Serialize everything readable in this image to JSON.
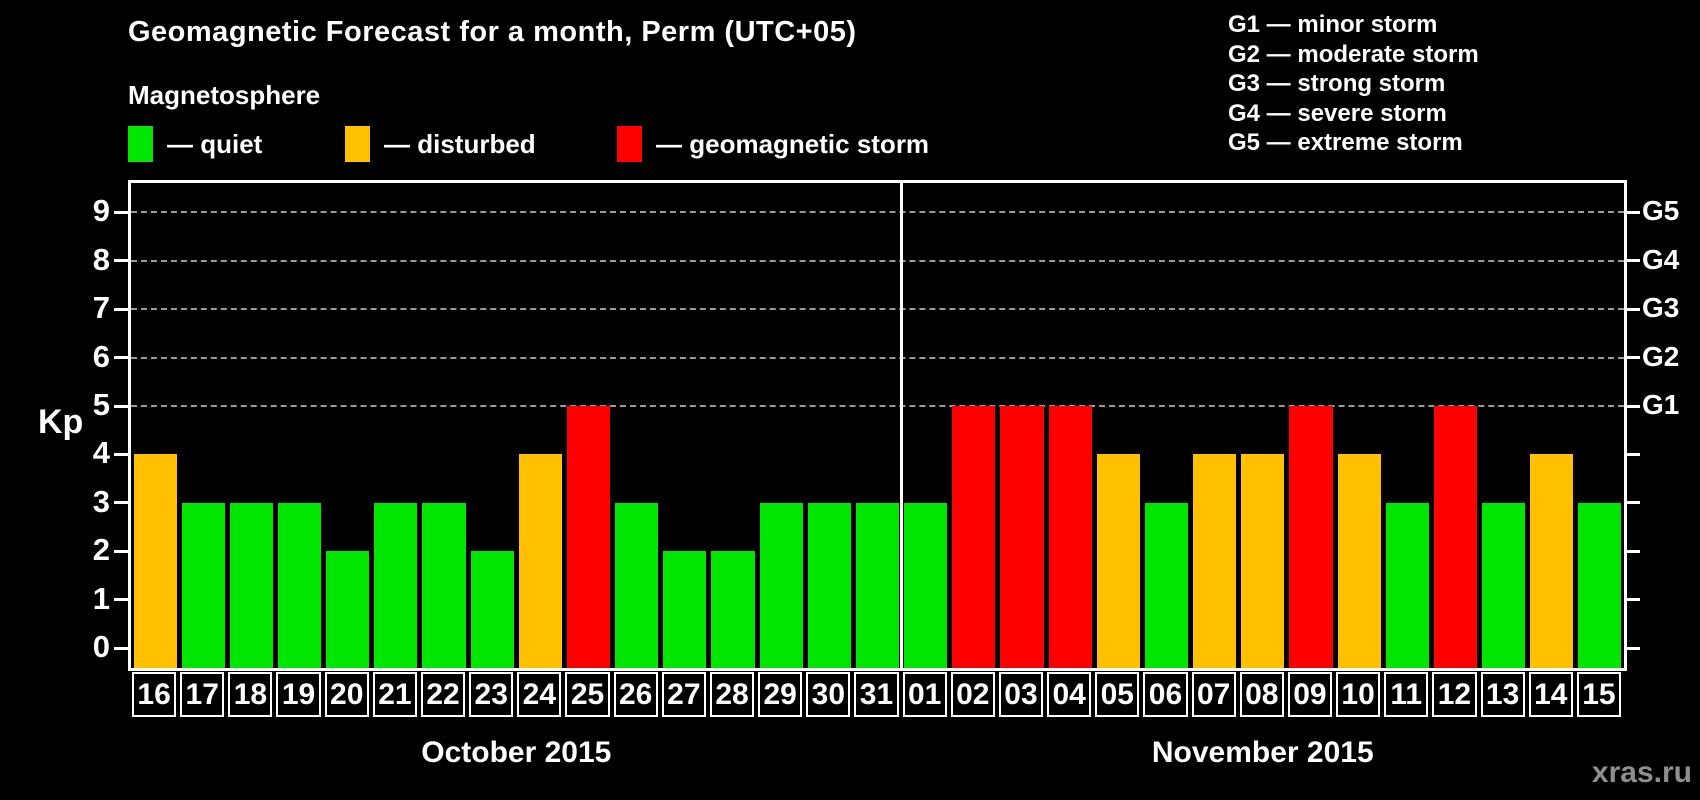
{
  "title": "Geomagnetic Forecast for a month, Perm (UTC+05)",
  "subtitle": "Magnetosphere",
  "legend": {
    "items": [
      {
        "status": "quiet",
        "label": "— quiet"
      },
      {
        "status": "disturbed",
        "label": "— disturbed"
      },
      {
        "status": "storm",
        "label": "— geomagnetic storm"
      }
    ]
  },
  "g_legend": {
    "items": [
      "G1 — minor storm",
      "G2 — moderate storm",
      "G3 — strong storm",
      "G4 — severe storm",
      "G5 — extreme storm"
    ]
  },
  "axis": {
    "kp_label": "Kp",
    "left_ticks": [
      0,
      1,
      2,
      3,
      4,
      5,
      6,
      7,
      8,
      9
    ],
    "g_labels": [
      {
        "kp": 5,
        "text": "G1"
      },
      {
        "kp": 6,
        "text": "G2"
      },
      {
        "kp": 7,
        "text": "G3"
      },
      {
        "kp": 8,
        "text": "G4"
      },
      {
        "kp": 9,
        "text": "G5"
      }
    ]
  },
  "months": [
    {
      "label": "October 2015",
      "days": 16
    },
    {
      "label": "November 2015",
      "days": 15
    }
  ],
  "watermark": "xras.ru",
  "colors": {
    "background": "#000000",
    "text": "#ffffff",
    "grid": "#9a9a9a",
    "quiet": "#00e600",
    "disturbed": "#ffc000",
    "storm": "#ff0000",
    "watermark": "#8f8f8f"
  },
  "chart_data": {
    "type": "bar",
    "title": "Geomagnetic Forecast for a month, Perm (UTC+05)",
    "xlabel": "",
    "ylabel": "Kp",
    "ylim": [
      0,
      9
    ],
    "grid": "dashed horizontal lines at Kp 5-9 (G1-G5 levels)",
    "categories": [
      "16",
      "17",
      "18",
      "19",
      "20",
      "21",
      "22",
      "23",
      "24",
      "25",
      "26",
      "27",
      "28",
      "29",
      "30",
      "31",
      "01",
      "02",
      "03",
      "04",
      "05",
      "06",
      "07",
      "08",
      "09",
      "10",
      "11",
      "12",
      "13",
      "14",
      "15"
    ],
    "values": [
      4,
      3,
      3,
      3,
      2,
      3,
      3,
      2,
      4,
      5,
      3,
      2,
      2,
      3,
      3,
      3,
      3,
      5,
      5,
      5,
      4,
      3,
      4,
      4,
      5,
      4,
      3,
      5,
      3,
      4,
      3
    ],
    "statuses": [
      "disturbed",
      "quiet",
      "quiet",
      "quiet",
      "quiet",
      "quiet",
      "quiet",
      "quiet",
      "disturbed",
      "storm",
      "quiet",
      "quiet",
      "quiet",
      "quiet",
      "quiet",
      "quiet",
      "quiet",
      "storm",
      "storm",
      "storm",
      "disturbed",
      "quiet",
      "disturbed",
      "disturbed",
      "storm",
      "disturbed",
      "quiet",
      "storm",
      "quiet",
      "disturbed",
      "quiet"
    ],
    "gridlines_kp": [
      5,
      6,
      7,
      8,
      9
    ],
    "month_split_index": 16,
    "legend_position": "top-left"
  }
}
